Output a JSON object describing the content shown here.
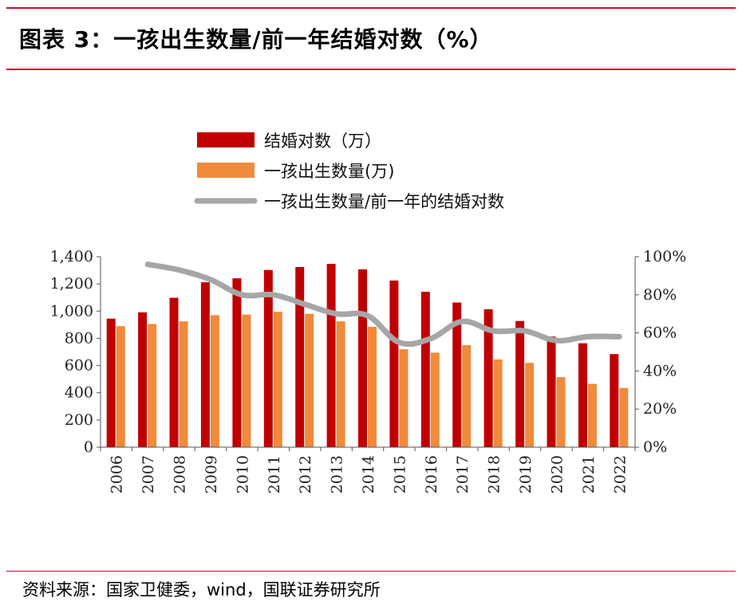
{
  "header": {
    "title": "图表 3：一孩出生数量/前一年结婚对数（%）"
  },
  "footer": {
    "source": "资料来源：国家卫健委，wind，国联证券研究所"
  },
  "colors": {
    "rule": "#c8102e",
    "marriages": "#c00000",
    "first_births": "#f08a3c",
    "ratio": "#a6a6a6",
    "axis": "#555555"
  },
  "chart_data": {
    "type": "bar",
    "categories": [
      "2006",
      "2007",
      "2008",
      "2009",
      "2010",
      "2011",
      "2012",
      "2013",
      "2014",
      "2015",
      "2016",
      "2017",
      "2018",
      "2019",
      "2020",
      "2021",
      "2022"
    ],
    "series": [
      {
        "name": "结婚对数（万）",
        "type": "bar",
        "axis": "left",
        "values": [
          945,
          991,
          1098,
          1212,
          1241,
          1302,
          1324,
          1347,
          1307,
          1225,
          1142,
          1063,
          1014,
          927,
          813,
          764,
          684
        ]
      },
      {
        "name": "一孩出生数量(万)",
        "type": "bar",
        "axis": "left",
        "values": [
          890,
          905,
          925,
          970,
          975,
          995,
          980,
          925,
          885,
          720,
          695,
          750,
          645,
          620,
          515,
          465,
          435
        ]
      },
      {
        "name": "一孩出生数量/前一年的结婚对数",
        "type": "line",
        "axis": "right",
        "values": [
          null,
          96,
          93,
          88,
          80,
          80,
          75,
          70,
          69,
          55,
          57,
          66,
          61,
          61,
          56,
          58,
          58
        ]
      }
    ],
    "y_left": {
      "min": 0,
      "max": 1400,
      "ticks": [
        0,
        200,
        400,
        600,
        800,
        1000,
        1200,
        1400
      ],
      "tick_labels": [
        "0",
        "200",
        "400",
        "600",
        "800",
        "1,000",
        "1,200",
        "1,400"
      ]
    },
    "y_right": {
      "min": 0,
      "max": 100,
      "ticks": [
        0,
        20,
        40,
        60,
        80,
        100
      ],
      "tick_labels": [
        "0%",
        "20%",
        "40%",
        "60%",
        "80%",
        "100%"
      ]
    },
    "legend_position": "top-center",
    "grid": false
  }
}
